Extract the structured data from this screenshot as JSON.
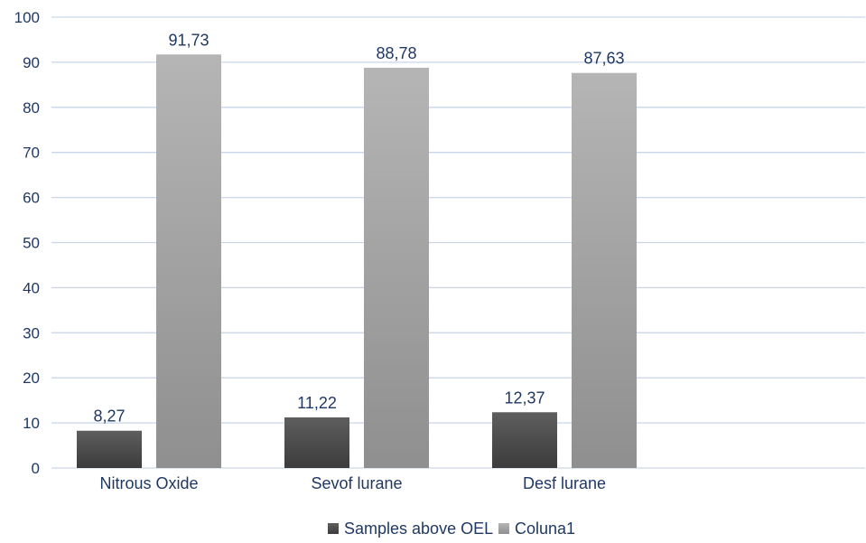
{
  "chart_data": {
    "type": "bar",
    "categories": [
      "Nitrous Oxide",
      "Sevof lurane",
      "Desf lurane"
    ],
    "series": [
      {
        "name": "Samples above OEL",
        "values": [
          8.27,
          11.22,
          12.37
        ],
        "labels": [
          "8,27",
          "11,22",
          "12,37"
        ],
        "color": "#555555"
      },
      {
        "name": "Coluna1",
        "values": [
          91.73,
          88.78,
          87.63
        ],
        "labels": [
          "91,73",
          "88,78",
          "87,63"
        ],
        "color": "#a6a6a6"
      }
    ],
    "ylim": [
      0,
      100
    ],
    "yticks": [
      0,
      10,
      20,
      30,
      40,
      50,
      60,
      70,
      80,
      90,
      100
    ],
    "grid": true,
    "legend_position": "bottom",
    "colors": {
      "text": "#1f3864",
      "grid": "#c9d6e8",
      "axis": "#b9c7dc"
    }
  }
}
